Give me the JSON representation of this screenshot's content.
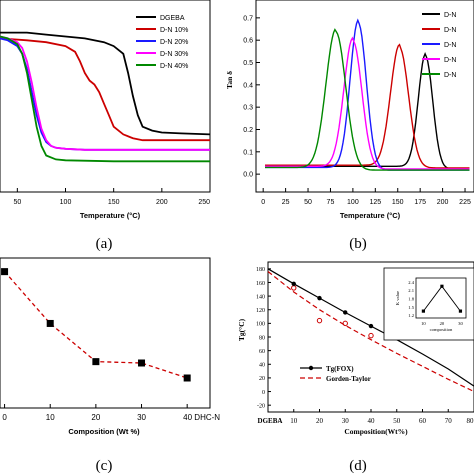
{
  "panels": {
    "a": {
      "caption": "(a)"
    },
    "b": {
      "caption": "(b)"
    },
    "c": {
      "caption": "(c)"
    },
    "d": {
      "caption": "(d)"
    }
  },
  "chart_data": [
    {
      "id": "a",
      "type": "line",
      "xlabel": "Temperature (°C)",
      "ylabel": "",
      "xlim": [
        32,
        250
      ],
      "ylim": [
        0,
        1
      ],
      "xticks": [
        "50",
        "100",
        "150",
        "200",
        "250"
      ],
      "xtick_values": [
        50,
        100,
        150,
        200,
        250
      ],
      "legend_position": "top-right",
      "series": [
        {
          "name": "DGEBA",
          "color": "#000000",
          "x": [
            32,
            60,
            80,
            100,
            120,
            140,
            150,
            160,
            165,
            170,
            175,
            180,
            190,
            200,
            220,
            250
          ],
          "y": [
            0.83,
            0.83,
            0.82,
            0.81,
            0.8,
            0.78,
            0.76,
            0.72,
            0.62,
            0.5,
            0.4,
            0.34,
            0.32,
            0.31,
            0.305,
            0.3
          ]
        },
        {
          "name": "D-N 10%",
          "color": "#cc0000",
          "x": [
            32,
            60,
            80,
            100,
            110,
            115,
            120,
            125,
            130,
            135,
            140,
            145,
            150,
            160,
            170,
            180,
            200,
            250
          ],
          "y": [
            0.8,
            0.79,
            0.78,
            0.76,
            0.73,
            0.68,
            0.62,
            0.58,
            0.56,
            0.52,
            0.46,
            0.4,
            0.34,
            0.3,
            0.28,
            0.27,
            0.27,
            0.27
          ]
        },
        {
          "name": "D-N 20%",
          "color": "#1a1aff",
          "x": [
            32,
            40,
            50,
            55,
            60,
            65,
            70,
            75,
            80,
            85,
            90,
            100,
            120,
            150,
            200,
            250
          ],
          "y": [
            0.8,
            0.79,
            0.76,
            0.72,
            0.64,
            0.52,
            0.4,
            0.31,
            0.26,
            0.24,
            0.23,
            0.225,
            0.22,
            0.22,
            0.22,
            0.22
          ]
        },
        {
          "name": "D-N 30%",
          "color": "#ff00ff",
          "x": [
            32,
            40,
            50,
            55,
            60,
            65,
            70,
            75,
            80,
            85,
            90,
            100,
            120,
            150,
            200,
            250
          ],
          "y": [
            0.81,
            0.8,
            0.78,
            0.75,
            0.68,
            0.57,
            0.44,
            0.33,
            0.27,
            0.24,
            0.23,
            0.225,
            0.22,
            0.22,
            0.22,
            0.22
          ]
        },
        {
          "name": "D-N 40%",
          "color": "#008800",
          "x": [
            32,
            40,
            50,
            55,
            60,
            65,
            70,
            75,
            80,
            90,
            100,
            150,
            200,
            250
          ],
          "y": [
            0.81,
            0.8,
            0.77,
            0.72,
            0.62,
            0.48,
            0.34,
            0.24,
            0.19,
            0.17,
            0.165,
            0.16,
            0.16,
            0.16
          ]
        }
      ]
    },
    {
      "id": "b",
      "type": "line",
      "xlabel": "Temperature (°C)",
      "ylabel": "Tan δ",
      "xlim": [
        -8,
        235
      ],
      "ylim": [
        -0.08,
        0.78
      ],
      "xticks": [
        "0",
        "25",
        "50",
        "75",
        "100",
        "125",
        "150",
        "175",
        "200",
        "225"
      ],
      "xtick_values": [
        0,
        25,
        50,
        75,
        100,
        125,
        150,
        175,
        200,
        225
      ],
      "yticks": [
        "0.0",
        "0.1",
        "0.2",
        "0.3",
        "0.4",
        "0.5",
        "0.6",
        "0.7"
      ],
      "ytick_values": [
        0,
        0.1,
        0.2,
        0.3,
        0.4,
        0.5,
        0.6,
        0.7
      ],
      "legend_position": "top-right",
      "legend_labels": [
        "D-N",
        "D-N",
        "D-N",
        "D-N",
        "D-N"
      ],
      "series": [
        {
          "color": "#000000",
          "peak_x": 181,
          "peak_y": 0.54,
          "width": 8,
          "base": 0.035
        },
        {
          "color": "#cc0000",
          "peak_x": 152,
          "peak_y": 0.58,
          "width": 10,
          "base": 0.04
        },
        {
          "color": "#1a1aff",
          "peak_x": 106,
          "peak_y": 0.69,
          "width": 9,
          "base": 0.03
        },
        {
          "color": "#ff00ff",
          "peak_x": 100,
          "peak_y": 0.61,
          "width": 10,
          "base": 0.035
        },
        {
          "color": "#008800",
          "peak_x": 81,
          "peak_y": 0.65,
          "width": 11,
          "base": 0.03
        }
      ]
    },
    {
      "id": "c",
      "type": "line",
      "xlabel": "Composition (Wt %)",
      "ylabel": "",
      "categories": [
        "0",
        "10",
        "20",
        "30",
        "40 DHC-N"
      ],
      "x": [
        0,
        10,
        20,
        30,
        40
      ],
      "values": [
        1.0,
        0.62,
        0.34,
        0.33,
        0.22
      ],
      "ylim": [
        0,
        1.1
      ],
      "xlim": [
        -1,
        45
      ],
      "color": "#cc0000",
      "marker_color": "#000000"
    },
    {
      "id": "d",
      "type": "line",
      "xlabel": "Composition(Wt%)",
      "ylabel": "Tg(°C)",
      "xlim": [
        0,
        80
      ],
      "ylim": [
        -30,
        190
      ],
      "xticks": [
        "DGEBA",
        "10",
        "20",
        "30",
        "40",
        "50",
        "60",
        "70",
        "80"
      ],
      "xtick_values": [
        0,
        10,
        20,
        30,
        40,
        50,
        60,
        70,
        80
      ],
      "yticks": [
        "-20",
        "0",
        "20",
        "40",
        "60",
        "80",
        "100",
        "120",
        "140",
        "160",
        "180"
      ],
      "ytick_values": [
        -20,
        0,
        20,
        40,
        60,
        80,
        100,
        120,
        140,
        160,
        180
      ],
      "series": [
        {
          "name": "Tg(FOX)",
          "type": "line",
          "color": "#000000",
          "x": [
            0,
            10,
            20,
            30,
            40,
            50,
            60,
            70,
            80
          ],
          "y": [
            180,
            158,
            137,
            116,
            96,
            76,
            55,
            33,
            8
          ]
        },
        {
          "name": "Gorden-Taylor",
          "type": "dashed",
          "color": "#cc0000",
          "x": [
            0,
            10,
            20,
            30,
            40,
            50,
            60,
            70,
            80
          ],
          "y": [
            176,
            146,
            120,
            97,
            76,
            56,
            37,
            18,
            0
          ]
        },
        {
          "name": "",
          "type": "scatter-open",
          "color": "#cc0000",
          "x": [
            10,
            20,
            30,
            40
          ],
          "y": [
            152,
            104,
            100,
            82
          ]
        },
        {
          "name": "",
          "type": "scatter-filled",
          "color": "#000000",
          "x": [
            10,
            20,
            30,
            40
          ],
          "y": [
            158,
            137,
            116,
            96
          ]
        }
      ],
      "inset": {
        "xlabel": "composition",
        "ylabel": "K value",
        "xticks": [
          "10",
          "20",
          "30"
        ],
        "xtick_values": [
          10,
          20,
          30
        ],
        "yticks": [
          "1.2",
          "1.5",
          "1.8",
          "2.1",
          "2.4"
        ],
        "ytick_values": [
          1.2,
          1.5,
          1.8,
          2.1,
          2.4
        ],
        "xlim": [
          6,
          33
        ],
        "ylim": [
          1.1,
          2.55
        ],
        "x": [
          10,
          20,
          30
        ],
        "y": [
          1.35,
          2.25,
          1.35
        ],
        "color": "#000000"
      }
    }
  ]
}
